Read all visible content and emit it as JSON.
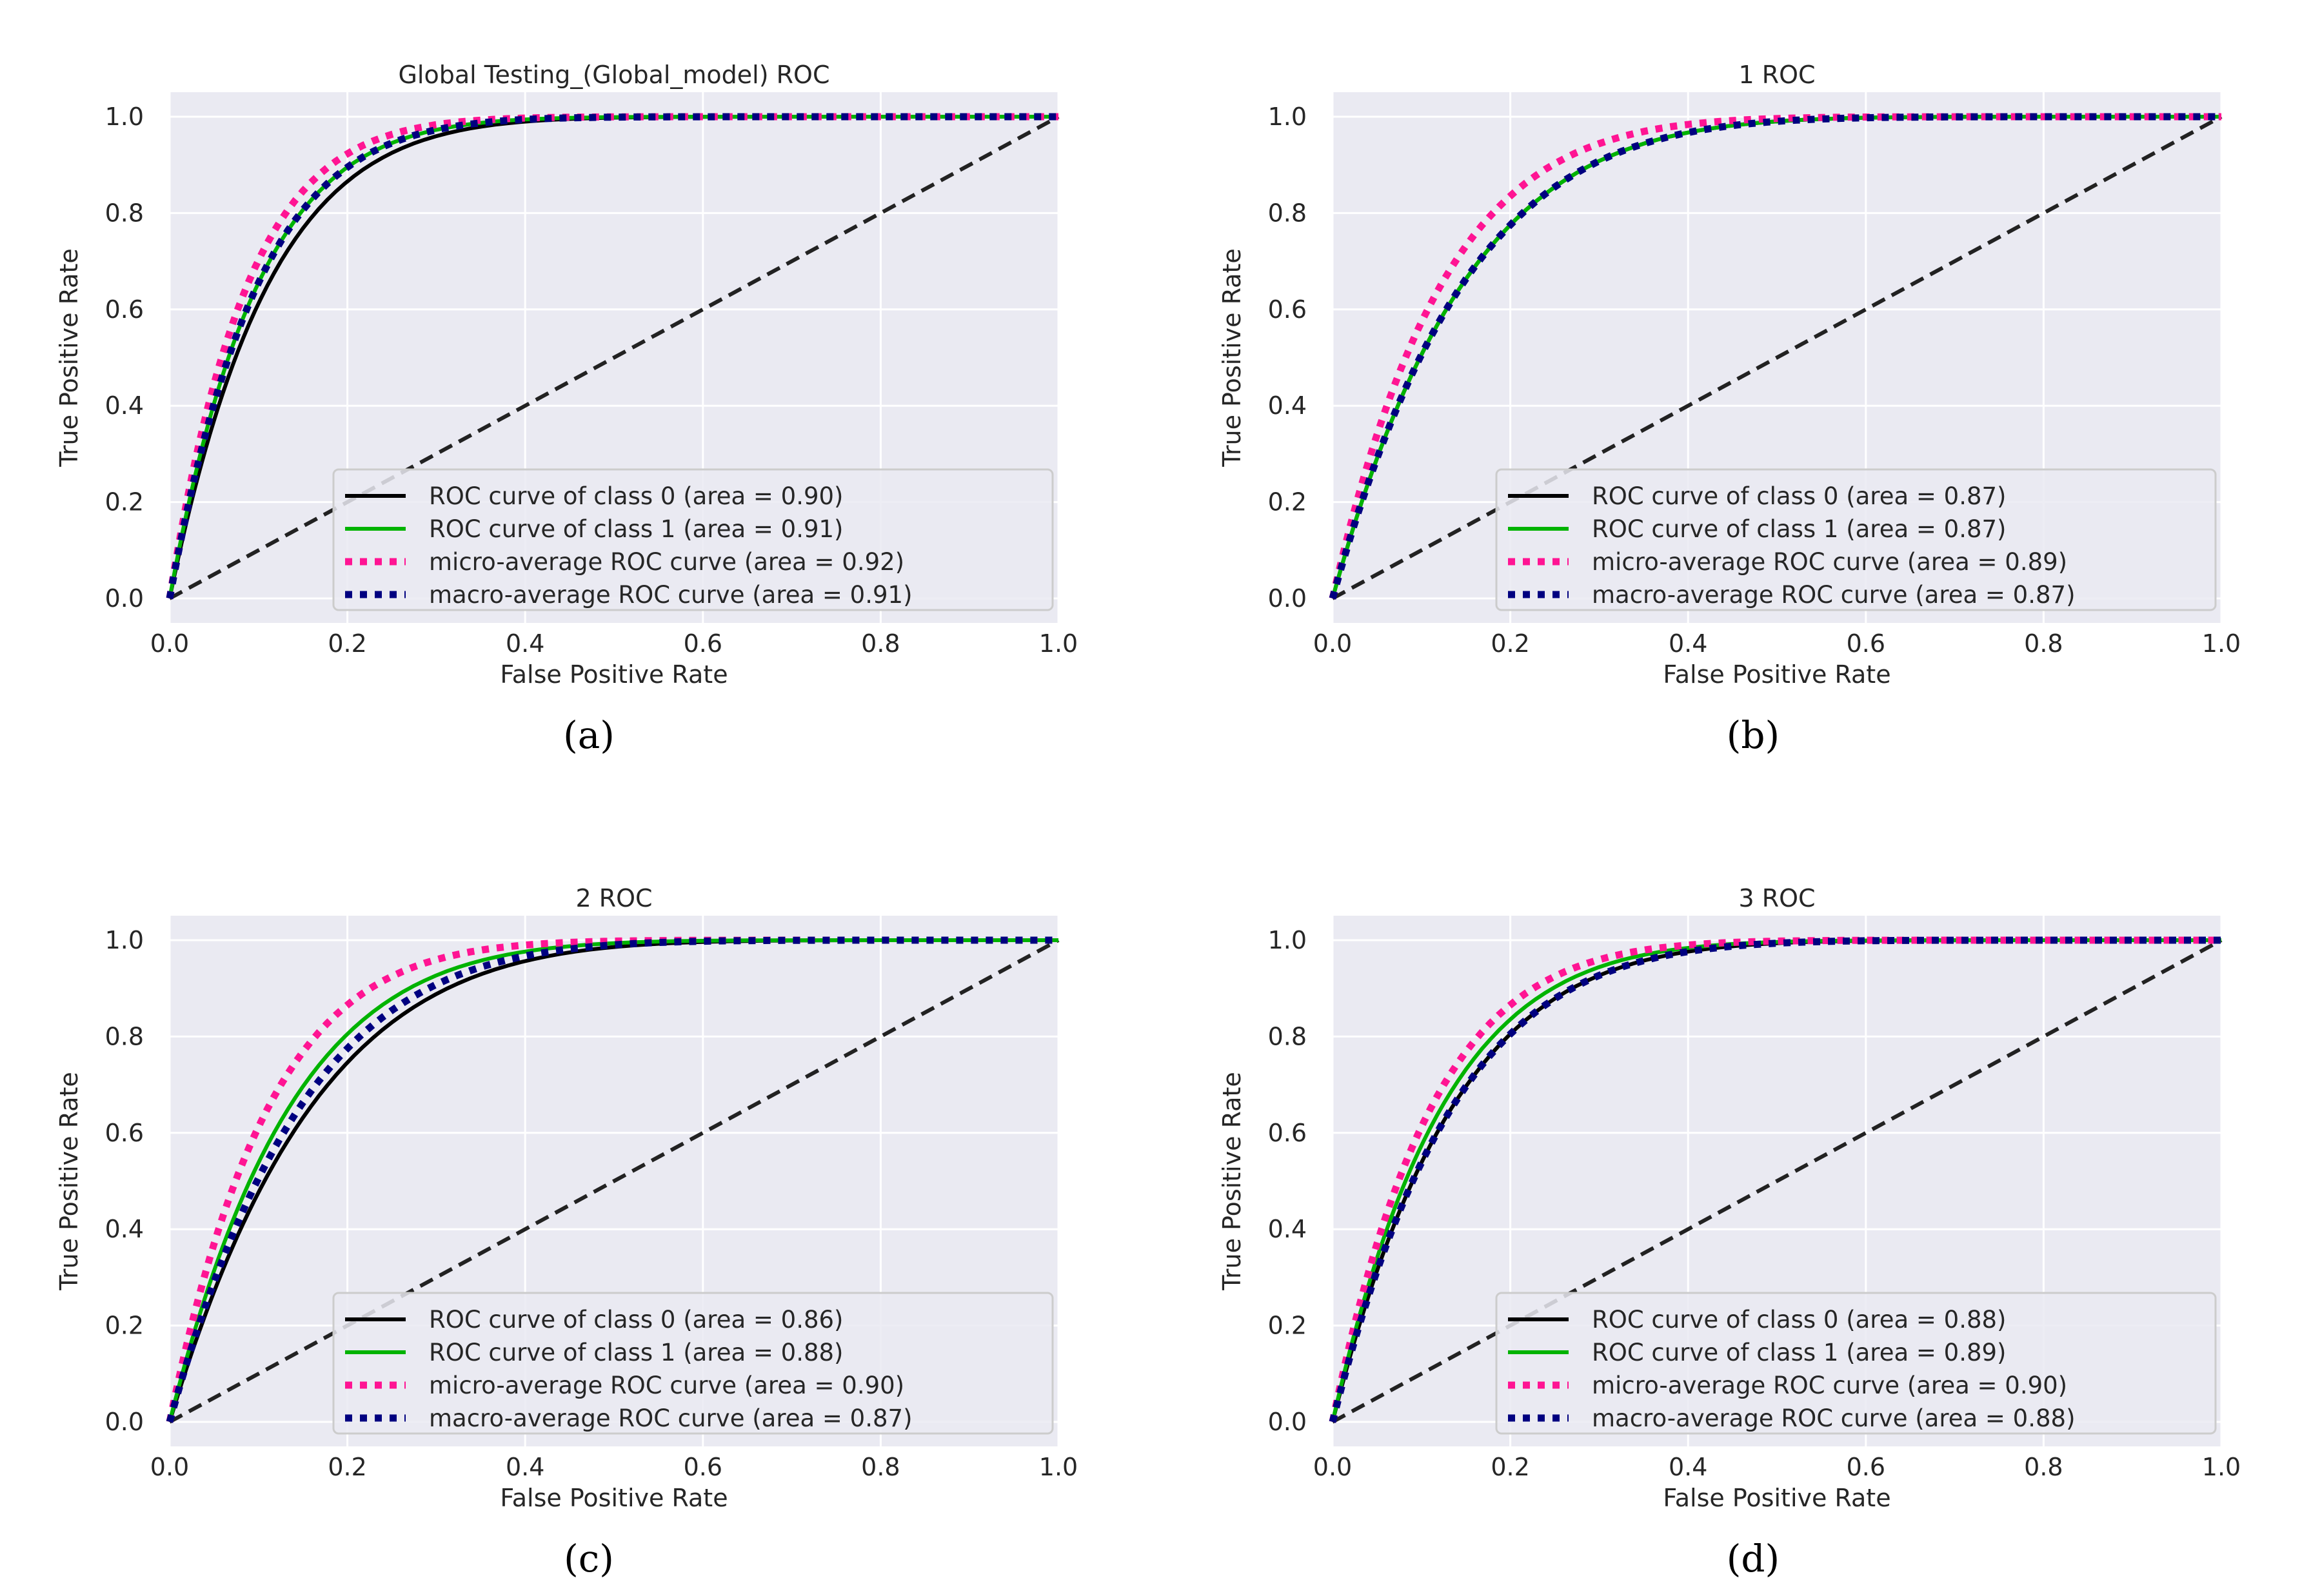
{
  "figure": {
    "panel_labels": [
      "(a)",
      "(b)",
      "(c)",
      "(d)"
    ],
    "colors": {
      "background": "#eaeaf2",
      "grid": "#ffffff",
      "class0": "#000000",
      "class1": "#00b300",
      "micro": "#ff1493",
      "macro": "#000080",
      "diagonal": "#222222"
    }
  },
  "chart_data": [
    {
      "type": "line",
      "title": "Global Testing_(Global_model) ROC",
      "xlabel": "False Positive Rate",
      "ylabel": "True Positive Rate",
      "xlim": [
        0.0,
        1.0
      ],
      "ylim": [
        0.0,
        1.0
      ],
      "xticks": [
        "0.0",
        "0.2",
        "0.4",
        "0.6",
        "0.8",
        "1.0"
      ],
      "yticks": [
        "0.0",
        "0.2",
        "0.4",
        "0.6",
        "0.8",
        "1.0"
      ],
      "legend_position": "lower-right",
      "grid": true,
      "series": [
        {
          "name": "ROC curve of class 0 (area = 0.90)",
          "style": "solid",
          "auc": 0.9
        },
        {
          "name": "ROC curve of class 1 (area = 0.91)",
          "style": "solid",
          "auc": 0.91
        },
        {
          "name": "micro-average ROC curve (area = 0.92)",
          "style": "dotted",
          "auc": 0.92
        },
        {
          "name": "macro-average ROC curve (area = 0.91)",
          "style": "dotted",
          "auc": 0.91
        }
      ]
    },
    {
      "type": "line",
      "title": "1 ROC",
      "xlabel": "False Positive Rate",
      "ylabel": "True Positive Rate",
      "xlim": [
        0.0,
        1.0
      ],
      "ylim": [
        0.0,
        1.0
      ],
      "xticks": [
        "0.0",
        "0.2",
        "0.4",
        "0.6",
        "0.8",
        "1.0"
      ],
      "yticks": [
        "0.0",
        "0.2",
        "0.4",
        "0.6",
        "0.8",
        "1.0"
      ],
      "legend_position": "lower-right",
      "grid": true,
      "series": [
        {
          "name": "ROC curve of class 0 (area = 0.87)",
          "style": "solid",
          "auc": 0.87
        },
        {
          "name": "ROC curve of class 1 (area = 0.87)",
          "style": "solid",
          "auc": 0.87
        },
        {
          "name": "micro-average ROC curve (area = 0.89)",
          "style": "dotted",
          "auc": 0.89
        },
        {
          "name": "macro-average ROC curve (area = 0.87)",
          "style": "dotted",
          "auc": 0.87
        }
      ]
    },
    {
      "type": "line",
      "title": "2 ROC",
      "xlabel": "False Positive Rate",
      "ylabel": "True Positive Rate",
      "xlim": [
        0.0,
        1.0
      ],
      "ylim": [
        0.0,
        1.0
      ],
      "xticks": [
        "0.0",
        "0.2",
        "0.4",
        "0.6",
        "0.8",
        "1.0"
      ],
      "yticks": [
        "0.0",
        "0.2",
        "0.4",
        "0.6",
        "0.8",
        "1.0"
      ],
      "legend_position": "lower-right",
      "grid": true,
      "series": [
        {
          "name": "ROC curve of class 0 (area = 0.86)",
          "style": "solid",
          "auc": 0.86
        },
        {
          "name": "ROC curve of class 1 (area = 0.88)",
          "style": "solid",
          "auc": 0.88
        },
        {
          "name": "micro-average ROC curve (area = 0.90)",
          "style": "dotted",
          "auc": 0.9
        },
        {
          "name": "macro-average ROC curve (area = 0.87)",
          "style": "dotted",
          "auc": 0.87
        }
      ]
    },
    {
      "type": "line",
      "title": "3 ROC",
      "xlabel": "False Positive Rate",
      "ylabel": "True Positive Rate",
      "xlim": [
        0.0,
        1.0
      ],
      "ylim": [
        0.0,
        1.0
      ],
      "xticks": [
        "0.0",
        "0.2",
        "0.4",
        "0.6",
        "0.8",
        "1.0"
      ],
      "yticks": [
        "0.0",
        "0.2",
        "0.4",
        "0.6",
        "0.8",
        "1.0"
      ],
      "legend_position": "lower-right",
      "grid": true,
      "series": [
        {
          "name": "ROC curve of class 0 (area = 0.88)",
          "style": "solid",
          "auc": 0.88
        },
        {
          "name": "ROC curve of class 1 (area = 0.89)",
          "style": "solid",
          "auc": 0.89
        },
        {
          "name": "micro-average ROC curve (area = 0.90)",
          "style": "dotted",
          "auc": 0.9
        },
        {
          "name": "macro-average ROC curve (area = 0.88)",
          "style": "dotted",
          "auc": 0.88
        }
      ]
    }
  ]
}
